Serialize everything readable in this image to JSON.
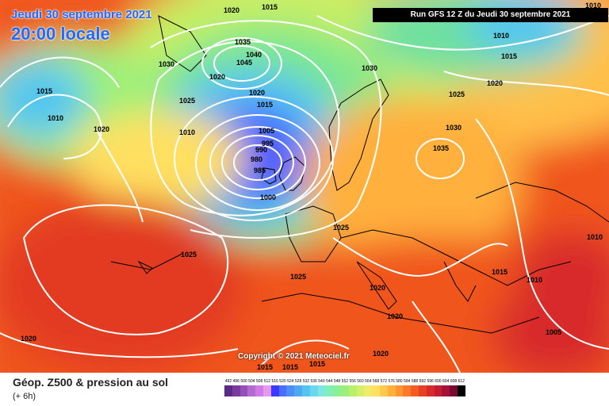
{
  "header": {
    "date": "Jeudi 30 septembre 2021",
    "time": "20:00 locale",
    "run": "Run GFS 12 Z du Jeudi 30 septembre 2021"
  },
  "copyright": "Copyright © 2021 Meteociel.fr",
  "legend": {
    "title": "Géop. Z500 & pression au sol",
    "subtitle": "(+ 6h)",
    "scale_values": [
      "492",
      "496",
      "500",
      "504",
      "508",
      "512",
      "516",
      "520",
      "524",
      "528",
      "532",
      "536",
      "540",
      "544",
      "548",
      "552",
      "556",
      "560",
      "564",
      "568",
      "572",
      "576",
      "580",
      "584",
      "588",
      "592",
      "596",
      "600",
      "604",
      "608",
      "612"
    ],
    "scale_colors": [
      "#5a2a86",
      "#7a3a9e",
      "#9450b8",
      "#b36ad0",
      "#d07be3",
      "#e59af0",
      "#3a3aff",
      "#4a6cff",
      "#4b8ef6",
      "#4fa9f0",
      "#55c4f0",
      "#6ad8ee",
      "#7ee8e0",
      "#80f0b8",
      "#8af098",
      "#9cf07a",
      "#b8f06a",
      "#d4f06a",
      "#eeec6a",
      "#ffe060",
      "#ffc94c",
      "#ffb03c",
      "#ff9630",
      "#ff7a28",
      "#f45c24",
      "#e84024",
      "#d82a2a",
      "#c31c30",
      "#a81038",
      "#7a0830",
      "#000000"
    ]
  },
  "isobar_labels": [
    "1020",
    "1015",
    "1030",
    "1035",
    "1040",
    "1045",
    "1015",
    "1010",
    "1020",
    "1025",
    "1010",
    "1020",
    "1015",
    "1005",
    "995",
    "990",
    "980",
    "985",
    "1000",
    "1025",
    "1020",
    "1030",
    "1035",
    "1030",
    "1025",
    "1020",
    "1015",
    "1010",
    "1025",
    "1025",
    "1020",
    "1020",
    "1020",
    "1015",
    "1010",
    "1005",
    "1015",
    "1020",
    "1015",
    "1015",
    "1010",
    "1010"
  ]
}
